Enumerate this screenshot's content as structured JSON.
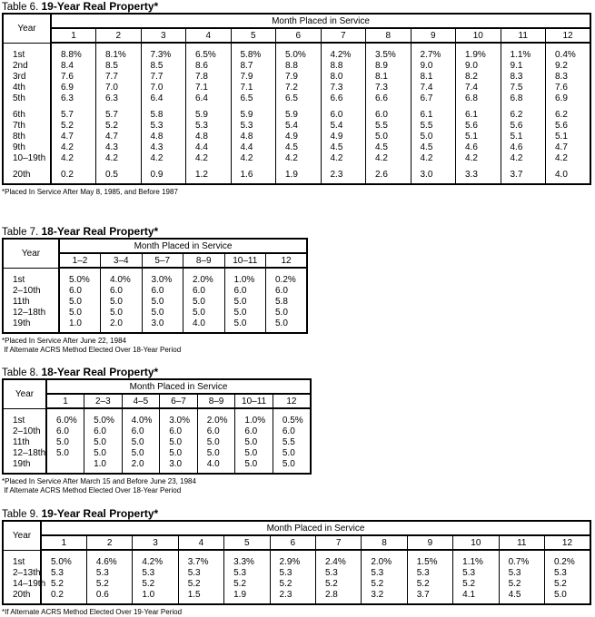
{
  "tables": [
    {
      "label": "Table 6.",
      "title": "19-Year Real Property*",
      "year_header": "Year",
      "group_header": "Month Placed in Service",
      "columns": [
        "1",
        "2",
        "3",
        "4",
        "5",
        "6",
        "7",
        "8",
        "9",
        "10",
        "11",
        "12"
      ],
      "groups": [
        [
          {
            "year": "1st",
            "values": [
              "8.8%",
              "8.1%",
              "7.3%",
              "6.5%",
              "5.8%",
              "5.0%",
              "4.2%",
              "3.5%",
              "2.7%",
              "1.9%",
              "1.1%",
              "0.4%"
            ]
          },
          {
            "year": "2nd",
            "values": [
              "8.4",
              "8.5",
              "8.5",
              "8.6",
              "8.7",
              "8.8",
              "8.8",
              "8.9",
              "9.0",
              "9.0",
              "9.1",
              "9.2"
            ]
          },
          {
            "year": "3rd",
            "values": [
              "7.6",
              "7.7",
              "7.7",
              "7.8",
              "7.9",
              "7.9",
              "8.0",
              "8.1",
              "8.1",
              "8.2",
              "8.3",
              "8.3"
            ]
          },
          {
            "year": "4th",
            "values": [
              "6.9",
              "7.0",
              "7.0",
              "7.1",
              "7.1",
              "7.2",
              "7.3",
              "7.3",
              "7.4",
              "7.4",
              "7.5",
              "7.6"
            ]
          },
          {
            "year": "5th",
            "values": [
              "6.3",
              "6.3",
              "6.4",
              "6.4",
              "6.5",
              "6.5",
              "6.6",
              "6.6",
              "6.7",
              "6.8",
              "6.8",
              "6.9"
            ]
          }
        ],
        [
          {
            "year": "6th",
            "values": [
              "5.7",
              "5.7",
              "5.8",
              "5.9",
              "5.9",
              "5.9",
              "6.0",
              "6.0",
              "6.1",
              "6.1",
              "6.2",
              "6.2"
            ]
          },
          {
            "year": "7th",
            "values": [
              "5.2",
              "5.2",
              "5.3",
              "5.3",
              "5.3",
              "5.4",
              "5.4",
              "5.5",
              "5.5",
              "5.6",
              "5.6",
              "5.6"
            ]
          },
          {
            "year": "8th",
            "values": [
              "4.7",
              "4.7",
              "4.8",
              "4.8",
              "4.8",
              "4.9",
              "4.9",
              "5.0",
              "5.0",
              "5.1",
              "5.1",
              "5.1"
            ]
          },
          {
            "year": "9th",
            "values": [
              "4.2",
              "4.3",
              "4.3",
              "4.4",
              "4.4",
              "4.5",
              "4.5",
              "4.5",
              "4.5",
              "4.6",
              "4.6",
              "4.7"
            ]
          },
          {
            "year": "10–19th",
            "values": [
              "4.2",
              "4.2",
              "4.2",
              "4.2",
              "4.2",
              "4.2",
              "4.2",
              "4.2",
              "4.2",
              "4.2",
              "4.2",
              "4.2"
            ]
          }
        ],
        [
          {
            "year": "20th",
            "values": [
              "0.2",
              "0.5",
              "0.9",
              "1.2",
              "1.6",
              "1.9",
              "2.3",
              "2.6",
              "3.0",
              "3.3",
              "3.7",
              "4.0"
            ]
          }
        ]
      ],
      "notes": [
        "*Placed In Service After May 8, 1985, and Before 1987"
      ]
    },
    {
      "label": "Table 7.",
      "title": "18-Year Real Property*",
      "year_header": "Year",
      "group_header": "Month Placed in Service",
      "columns": [
        "1–2",
        "3–4",
        "5–7",
        "8–9",
        "10–11",
        "12"
      ],
      "groups": [
        [
          {
            "year": "1st",
            "values": [
              "5.0%",
              "4.0%",
              "3.0%",
              "2.0%",
              "1.0%",
              "0.2%"
            ]
          },
          {
            "year": "2–10th",
            "values": [
              "6.0",
              "6.0",
              "6.0",
              "6.0",
              "6.0",
              "6.0"
            ]
          },
          {
            "year": "11th",
            "values": [
              "5.0",
              "5.0",
              "5.0",
              "5.0",
              "5.0",
              "5.8"
            ]
          },
          {
            "year": "12–18th",
            "values": [
              "5.0",
              "5.0",
              "5.0",
              "5.0",
              "5.0",
              "5.0"
            ]
          },
          {
            "year": "19th",
            "values": [
              "1.0",
              "2.0",
              "3.0",
              "4.0",
              "5.0",
              "5.0"
            ]
          }
        ]
      ],
      "notes": [
        "*Placed In Service After June 22, 1984",
        " If Alternate ACRS Method Elected Over 18-Year Period"
      ]
    },
    {
      "label": "Table 8.",
      "title": "18-Year Real Property*",
      "year_header": "Year",
      "group_header": "Month Placed in Service",
      "columns": [
        "1",
        "2–3",
        "4–5",
        "6–7",
        "8–9",
        "10–11",
        "12"
      ],
      "groups": [
        [
          {
            "year": "1st",
            "values": [
              "6.0%",
              "5.0%",
              "4.0%",
              "3.0%",
              "2.0%",
              "1.0%",
              "0.5%"
            ]
          },
          {
            "year": "2–10th",
            "values": [
              "6.0",
              "6.0",
              "6.0",
              "6.0",
              "6.0",
              "6.0",
              "6.0"
            ]
          },
          {
            "year": "11th",
            "values": [
              "5.0",
              "5.0",
              "5.0",
              "5.0",
              "5.0",
              "5.0",
              "5.5"
            ]
          },
          {
            "year": "12–18th",
            "values": [
              "5.0",
              "5.0",
              "5.0",
              "5.0",
              "5.0",
              "5.0",
              "5.0"
            ]
          },
          {
            "year": "19th",
            "values": [
              "",
              "1.0",
              "2.0",
              "3.0",
              "4.0",
              "5.0",
              "5.0"
            ]
          }
        ]
      ],
      "notes": [
        "*Placed In Service After March 15 and Before June 23, 1984",
        " If Alternate ACRS Method Elected Over 18-Year Period"
      ]
    },
    {
      "label": "Table 9.",
      "title": "19-Year Real Property*",
      "year_header": "Year",
      "group_header": "Month Placed in Service",
      "columns": [
        "1",
        "2",
        "3",
        "4",
        "5",
        "6",
        "7",
        "8",
        "9",
        "10",
        "11",
        "12"
      ],
      "groups": [
        [
          {
            "year": "1st",
            "values": [
              "5.0%",
              "4.6%",
              "4.2%",
              "3.7%",
              "3.3%",
              "2.9%",
              "2.4%",
              "2.0%",
              "1.5%",
              "1.1%",
              "0.7%",
              "0.2%"
            ]
          },
          {
            "year": "2–13th",
            "values": [
              "5.3",
              "5.3",
              "5.3",
              "5.3",
              "5.3",
              "5.3",
              "5.3",
              "5.3",
              "5.3",
              "5.3",
              "5.3",
              "5.3"
            ]
          },
          {
            "year": "14–19th",
            "values": [
              "5.2",
              "5.2",
              "5.2",
              "5.2",
              "5.2",
              "5.2",
              "5.2",
              "5.2",
              "5.2",
              "5.2",
              "5.2",
              "5.2"
            ]
          },
          {
            "year": "20th",
            "values": [
              "0.2",
              "0.6",
              "1.0",
              "1.5",
              "1.9",
              "2.3",
              "2.8",
              "3.2",
              "3.7",
              "4.1",
              "4.5",
              "5.0"
            ]
          }
        ]
      ],
      "notes": [
        "*If Alternate ACRS Method Elected Over 19-Year Period"
      ]
    }
  ]
}
